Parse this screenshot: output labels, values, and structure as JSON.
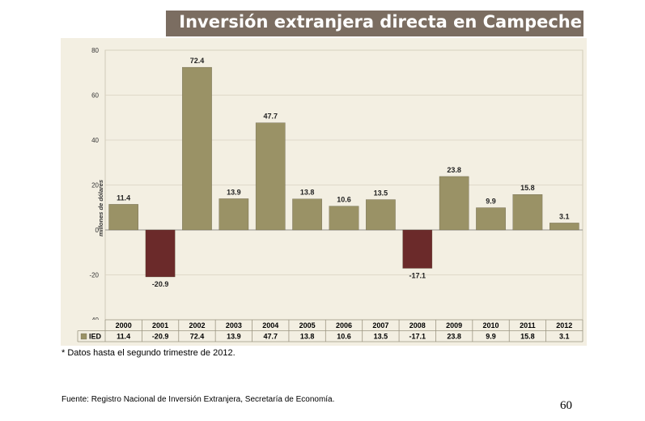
{
  "title": "Inversión extranjera directa en Campeche",
  "footnote": "* Datos hasta el segundo trimestre de 2012.",
  "source": "Fuente: Registro Nacional de Inversión Extranjera, Secretaría de Economía.",
  "page_number": "60",
  "colors": {
    "positive": "#9a9266",
    "negative": "#6b2a2a",
    "title_bg": "#7b6d61",
    "plot_bg": "#f3efe2"
  },
  "chart_data": {
    "type": "bar",
    "title": "Inversión extranjera directa en Campeche",
    "xlabel": "",
    "ylabel": "millones de dólares",
    "ylim": [
      -40,
      80
    ],
    "yticks": [
      -40,
      -20,
      0,
      20,
      40,
      60,
      80
    ],
    "grid": true,
    "categories": [
      "2000",
      "2001",
      "2002",
      "2003",
      "2004",
      "2005",
      "2006",
      "2007",
      "2008",
      "2009",
      "2010",
      "2011",
      "2012"
    ],
    "series": [
      {
        "name": "IED",
        "values": [
          11.4,
          -20.9,
          72.4,
          13.9,
          47.7,
          13.8,
          10.6,
          13.5,
          -17.1,
          23.8,
          9.9,
          15.8,
          3.1
        ]
      }
    ],
    "value_labels": [
      "11.4",
      "-20.9",
      "72.4",
      "13.9",
      "47.7",
      "13.8",
      "10.6",
      "13.5",
      "-17.1",
      "23.8",
      "9.9",
      "15.8",
      "3.1"
    ]
  }
}
